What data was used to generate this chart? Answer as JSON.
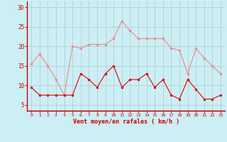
{
  "x": [
    0,
    1,
    2,
    3,
    4,
    5,
    6,
    7,
    8,
    9,
    10,
    11,
    12,
    13,
    14,
    15,
    16,
    17,
    18,
    19,
    20,
    21,
    22,
    23
  ],
  "rafales": [
    15.5,
    18,
    15,
    11.5,
    7.5,
    20,
    19.5,
    20.5,
    20.5,
    20.5,
    22,
    26.5,
    24,
    22,
    22,
    22,
    22,
    19.5,
    19,
    13,
    19.5,
    17,
    15,
    13
  ],
  "moyen": [
    9.5,
    7.5,
    7.5,
    7.5,
    7.5,
    7.5,
    13,
    11.5,
    9.5,
    13,
    15,
    9.5,
    11.5,
    11.5,
    13,
    9.5,
    11.5,
    7.5,
    6.5,
    11.5,
    9,
    6.5,
    6.5,
    7.5
  ],
  "bg_color": "#cceef5",
  "grid_color": "#aacccc",
  "line_color_rafales": "#f08888",
  "line_color_moyen": "#dd0000",
  "marker_color_rafales": "#f08888",
  "marker_color_moyen": "#dd0000",
  "xlabel": "Vent moyen/en rafales ( km/h )",
  "ylabel_ticks": [
    5,
    10,
    15,
    20,
    25,
    30
  ],
  "xlim": [
    -0.5,
    23.5
  ],
  "ylim": [
    3.5,
    31.5
  ],
  "xlabel_color": "#cc0000",
  "tick_color": "#cc0000",
  "spine_color": "#cc0000",
  "spine_bottom_color": "#cc0000"
}
